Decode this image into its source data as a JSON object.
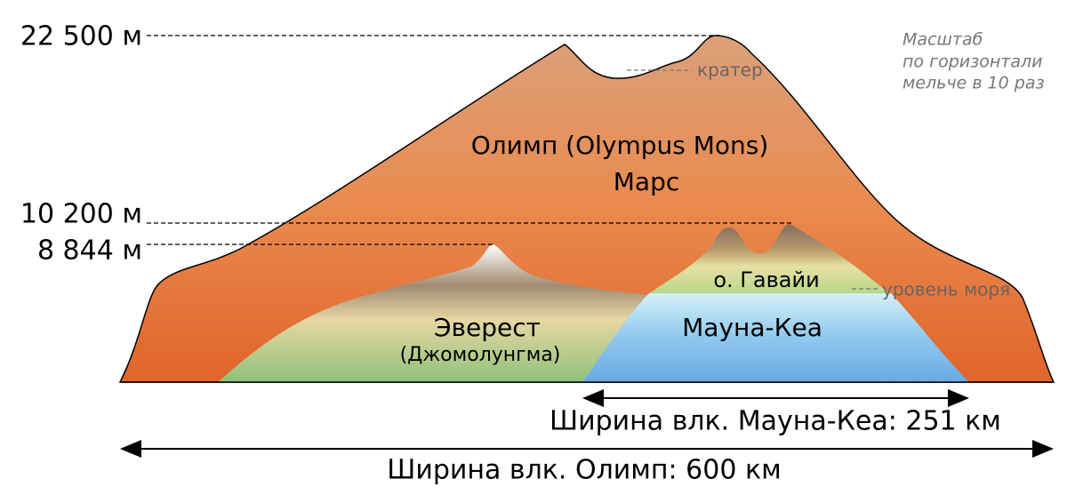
{
  "heights": [
    "22 500 м",
    "10 200 м",
    "8 844 м"
  ],
  "scale_note": [
    "Масштаб",
    "по горизонтали",
    "мельче в 10 раз"
  ],
  "crater": "кратер",
  "olympus": {
    "name": "Олимп (Olympus Mons)",
    "planet": "Марс"
  },
  "hawaii": {
    "island": "о. Гавайи",
    "sea_level": "уровень моря",
    "name": "Мауна-Кеа"
  },
  "everest": {
    "name": "Эверест",
    "alt_name": "(Джомолунгма)"
  },
  "widths": {
    "mauna_kea": "Ширина влк. Мауна-Кеа: 251 км",
    "olympus": "Ширина влк. Олимп: 600 км"
  }
}
